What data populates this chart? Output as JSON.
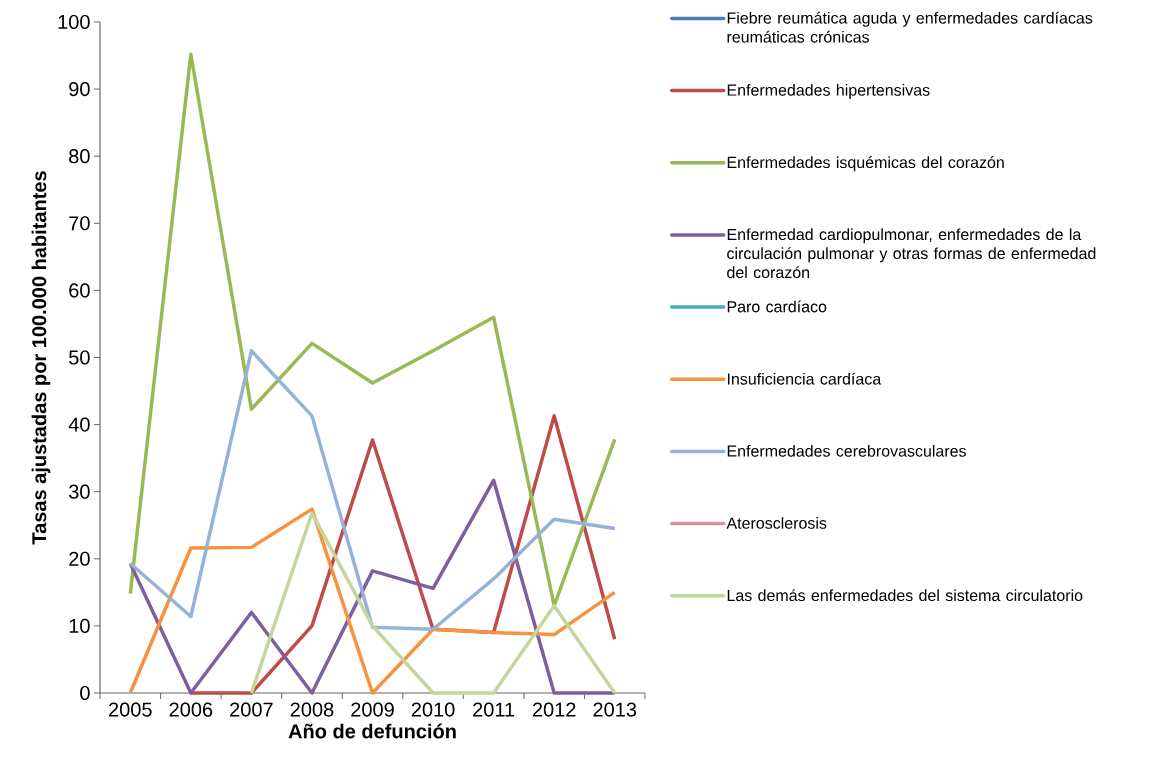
{
  "chart_data": {
    "type": "line",
    "xlabel": "Año de defunción",
    "ylabel": "Tasas ajustadas por 100.000 habitantes",
    "categories": [
      "2005",
      "2006",
      "2007",
      "2008",
      "2009",
      "2010",
      "2011",
      "2012",
      "2013"
    ],
    "ylim": [
      0,
      100
    ],
    "yticks": [
      0,
      10,
      20,
      30,
      40,
      50,
      60,
      70,
      80,
      90,
      100
    ],
    "grid": false,
    "legend": "right",
    "marker": "none",
    "line_style": "solid",
    "series": [
      {
        "name": "Fiebre reumática aguda y enfermedades cardíacas reumáticas crónicas",
        "color": "#4a7ebb",
        "values": [
          null,
          null,
          null,
          null,
          null,
          null,
          null,
          null,
          null
        ]
      },
      {
        "name": "Enfermedades hipertensivas",
        "color": "#be4b48",
        "values": [
          null,
          0,
          0,
          10,
          37.7,
          9.5,
          9,
          41.3,
          8
        ]
      },
      {
        "name": "Enfermedades isquémicas del corazón",
        "color": "#98b954",
        "values": [
          14.8,
          95.2,
          42.3,
          52.1,
          46.2,
          51,
          56,
          13,
          37.8
        ]
      },
      {
        "name": "Enfermedad cardiopulmonar, enfermedades de la circulación pulmonar y otras formas de enfermedad del corazón",
        "color": "#7d5fa0",
        "values": [
          19.3,
          0,
          12,
          0,
          18.2,
          15.6,
          31.7,
          0,
          0
        ]
      },
      {
        "name": "Paro cardíaco",
        "color": "#46aac5",
        "values": [
          null,
          null,
          null,
          null,
          null,
          null,
          null,
          null,
          null
        ]
      },
      {
        "name": "Insuficiencia cardíaca",
        "color": "#f69240",
        "values": [
          0,
          21.6,
          21.7,
          27.4,
          0,
          9.5,
          9,
          8.7,
          15
        ]
      },
      {
        "name": "Enfermedades cerebrovasculares",
        "color": "#95b3d7",
        "values": [
          19.3,
          11.4,
          51,
          41.3,
          9.8,
          9.5,
          17,
          25.9,
          24.5
        ]
      },
      {
        "name": "Aterosclerosis",
        "color": "#d99694",
        "values": [
          null,
          null,
          null,
          null,
          null,
          null,
          null,
          null,
          null
        ]
      },
      {
        "name": "Las demás enfermedades del sistema circulatorio",
        "color": "#c3d69b",
        "values": [
          null,
          null,
          0,
          26.8,
          10,
          0,
          0,
          13,
          0
        ]
      }
    ]
  }
}
